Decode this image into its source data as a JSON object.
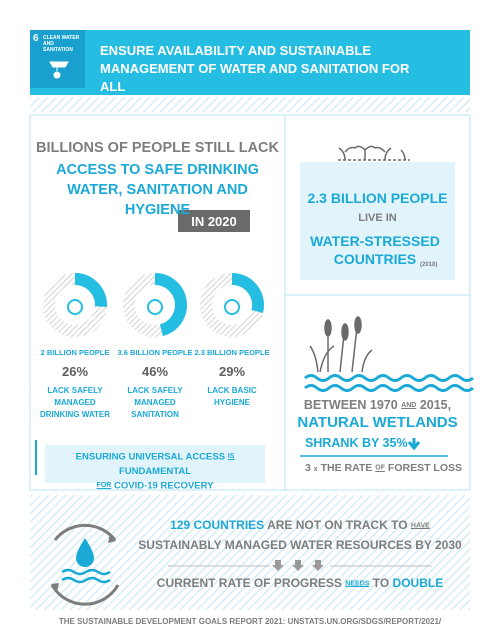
{
  "header": {
    "goal_number": "6",
    "goal_name": "CLEAN WATER AND SANITATION",
    "title": "ENSURE AVAILABILITY AND SUSTAINABLE MANAGEMENT OF WATER AND SANITATION FOR ALL"
  },
  "access": {
    "heading_gray": "BILLIONS OF PEOPLE STILL LACK",
    "heading_blue": "ACCESS TO SAFE DRINKING WATER, SANITATION AND HYGIENE",
    "year_badge": "IN 2020",
    "items": [
      {
        "people": "2 BILLION PEOPLE",
        "percent": 26,
        "percent_label": "26%",
        "description": "LACK SAFELY MANAGED DRINKING WATER"
      },
      {
        "people": "3.6 BILLION PEOPLE",
        "percent": 46,
        "percent_label": "46%",
        "description": "LACK SAFELY MANAGED SANITATION"
      },
      {
        "people": "2.3 BILLION PEOPLE",
        "percent": 29,
        "percent_label": "29%",
        "description": "LACK BASIC HYGIENE"
      }
    ],
    "footer": {
      "part1": "ENSURING UNIVERSAL ACCESS",
      "small1": "IS",
      "part2": "FUNDAMENTAL",
      "small2": "FOR",
      "part3": "COVID-19 RECOVERY"
    }
  },
  "stress": {
    "people": "2.3 BILLION PEOPLE",
    "live_in": "LIVE IN",
    "countries": "WATER-STRESSED COUNTRIES",
    "year": "(2018)"
  },
  "wetlands": {
    "line1a": "BETWEEN 1970",
    "line1b": "AND",
    "line1c": "2015,",
    "line2": "NATURAL WETLANDS",
    "line3": "SHRANK BY 35%",
    "rate1": "3",
    "rate2": "x",
    "rate3": "THE RATE",
    "rate4": "OF",
    "rate5": "FOREST LOSS"
  },
  "progress": {
    "countries": "129 COUNTRIES",
    "not_on_track": "ARE NOT ON TRACK",
    "to": "TO",
    "have": "HAVE",
    "line2": "SUSTAINABLY MANAGED WATER RESOURCES BY 2030",
    "line3a": "CURRENT RATE OF PROGRESS",
    "line3b": "NEEDS",
    "line3c": "TO",
    "line3d": "DOUBLE"
  },
  "source": "THE SUSTAINABLE DEVELOPMENT GOALS REPORT 2021: UNSTATS.UN.ORG/SDGS/REPORT/2021/"
}
